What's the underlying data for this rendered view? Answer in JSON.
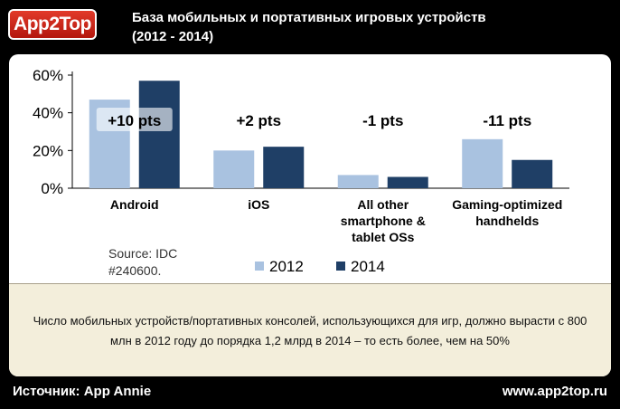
{
  "header": {
    "logo_text": "App2Top",
    "title_line1": "База мобильных и портативных игровых устройств",
    "title_line2": "(2012 - 2014)"
  },
  "chart_data": {
    "type": "bar",
    "categories": [
      "Android",
      "iOS",
      "All other smartphone & tablet OSs",
      "Gaming-optimized handhelds"
    ],
    "category_label_lines": [
      [
        "Android"
      ],
      [
        "iOS"
      ],
      [
        "All other",
        "smartphone &",
        "tablet OSs"
      ],
      [
        "Gaming-optimized",
        "handhelds"
      ]
    ],
    "series": [
      {
        "name": "2012",
        "values": [
          47,
          20,
          7,
          26
        ],
        "color": "#a9c2e0"
      },
      {
        "name": "2014",
        "values": [
          57,
          22,
          6,
          15
        ],
        "color": "#1f3f66"
      }
    ],
    "change_labels": [
      "+10 pts",
      "+2 pts",
      "-1 pts",
      "-11 pts"
    ],
    "yticks": [
      "60%",
      "40%",
      "20%",
      "0%"
    ],
    "ylim": [
      0,
      60
    ],
    "legend_placement": "bottom",
    "source_note_lines": [
      "Source: IDC",
      "#240600."
    ],
    "grid": false
  },
  "caption": {
    "text": "Число мобильных устройств/портативных консолей, использующихся для игр, должно вырасти с 800 млн в 2012 году до порядка 1,2 млрд в 2014 – то есть более, чем на 50%"
  },
  "footer": {
    "source": "Источник: App Annie",
    "site": "www.app2top.ru"
  }
}
